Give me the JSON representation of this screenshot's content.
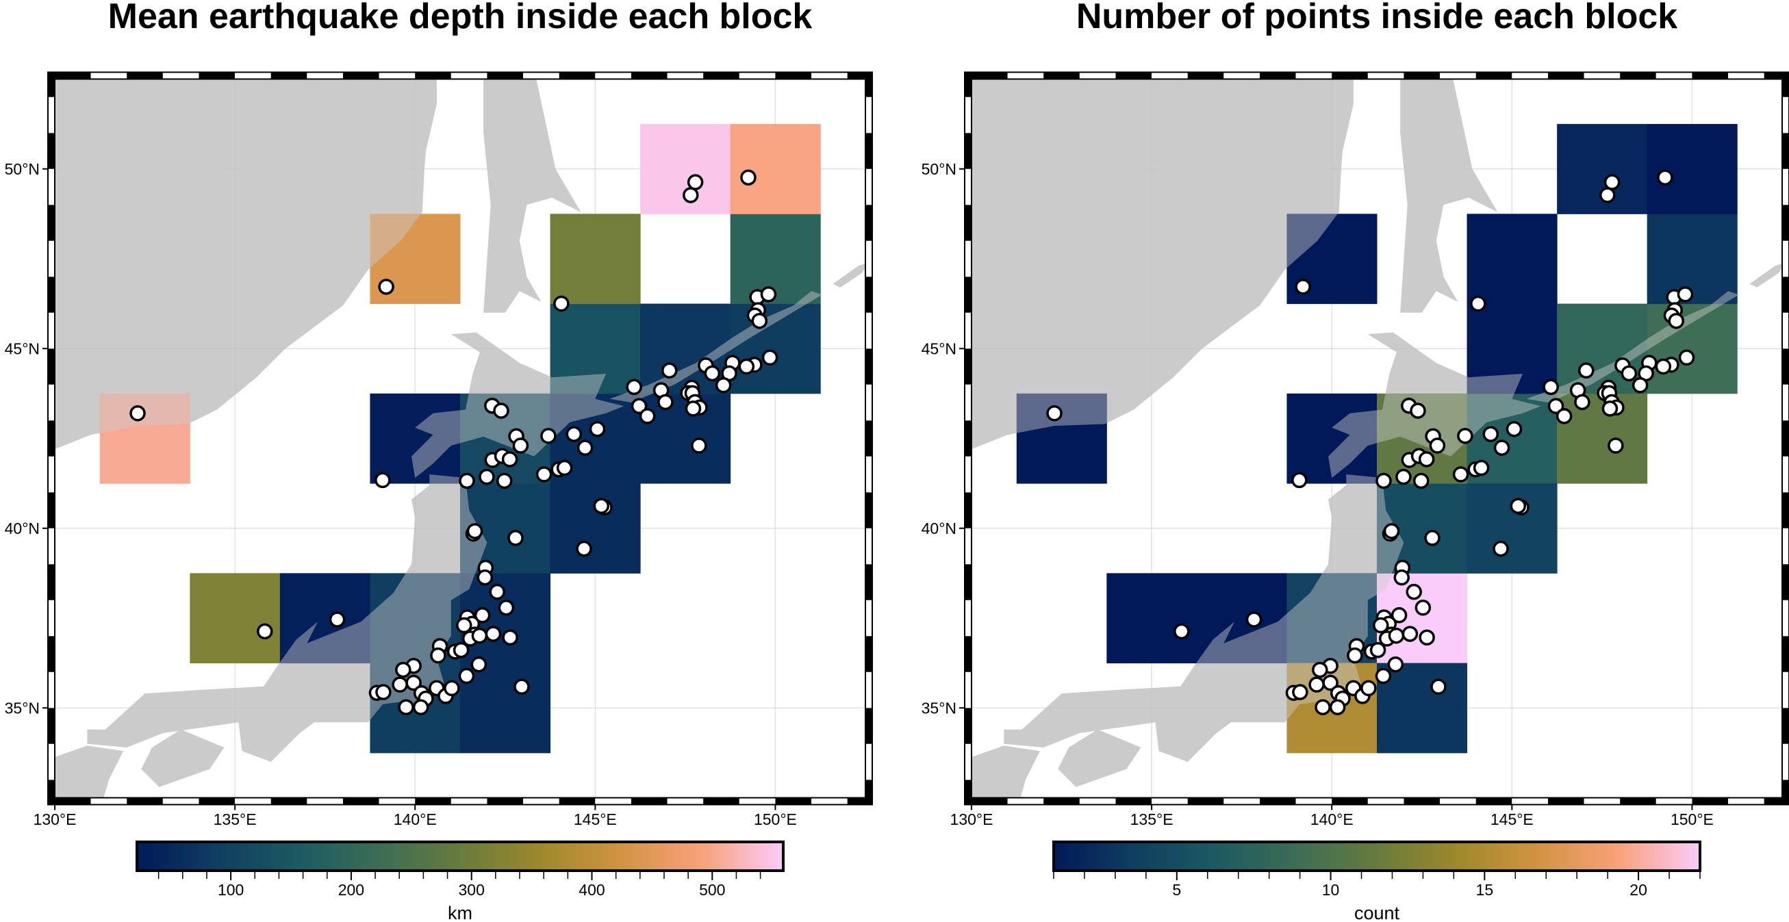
{
  "map": {
    "region": [
      130,
      152.5,
      32.5,
      52.5
    ],
    "block_spacing_deg": 2.5,
    "land_color": "#cbcbcb",
    "land_over_blocks_opacity": 0.45,
    "x_ticks": [
      {
        "value": 130,
        "label": "130°E"
      },
      {
        "value": 135,
        "label": "135°E"
      },
      {
        "value": 140,
        "label": "140°E"
      },
      {
        "value": 145,
        "label": "145°E"
      },
      {
        "value": 150,
        "label": "150°E"
      }
    ],
    "y_ticks": [
      {
        "value": 35,
        "label": "35°N"
      },
      {
        "value": 40,
        "label": "40°N"
      },
      {
        "value": 45,
        "label": "45°N"
      },
      {
        "value": 50,
        "label": "50°N"
      }
    ],
    "point_style": {
      "fill": "#ffffff",
      "stroke": "#000000"
    }
  },
  "colormap": {
    "name": "batlow",
    "stops": [
      "#011959",
      "#103f60",
      "#1c5a62",
      "#3c6d56",
      "#687b3e",
      "#9d892b",
      "#d29343",
      "#f8a17b",
      "#faccfa"
    ]
  },
  "panels": [
    {
      "title": "Mean earthquake depth inside each block",
      "colorbar": {
        "label": "km",
        "range": [
          22,
          559
        ],
        "ticks": [
          {
            "value": 100,
            "label": "100"
          },
          {
            "value": 200,
            "label": "200"
          },
          {
            "value": 300,
            "label": "300"
          },
          {
            "value": 400,
            "label": "400"
          },
          {
            "value": 500,
            "label": "500"
          }
        ],
        "minor_step": 20
      },
      "blocks": [
        {
          "lon": 132.5,
          "lat": 42.5,
          "value": 505
        },
        {
          "lon": 135.0,
          "lat": 37.5,
          "value": 320
        },
        {
          "lon": 137.5,
          "lat": 37.5,
          "value": 35
        },
        {
          "lon": 140.0,
          "lat": 37.5,
          "value": 88
        },
        {
          "lon": 142.5,
          "lat": 37.5,
          "value": 55
        },
        {
          "lon": 140.0,
          "lat": 35.0,
          "value": 88
        },
        {
          "lon": 142.5,
          "lat": 35.0,
          "value": 55
        },
        {
          "lon": 142.5,
          "lat": 40.0,
          "value": 95
        },
        {
          "lon": 145.0,
          "lat": 40.0,
          "value": 55
        },
        {
          "lon": 140.0,
          "lat": 42.5,
          "value": 30
        },
        {
          "lon": 142.5,
          "lat": 42.5,
          "value": 115
        },
        {
          "lon": 145.0,
          "lat": 42.5,
          "value": 55
        },
        {
          "lon": 147.5,
          "lat": 42.5,
          "value": 55
        },
        {
          "lon": 145.0,
          "lat": 45.0,
          "value": 140
        },
        {
          "lon": 147.5,
          "lat": 45.0,
          "value": 75
        },
        {
          "lon": 150.0,
          "lat": 45.0,
          "value": 85
        },
        {
          "lon": 140.0,
          "lat": 47.5,
          "value": 440
        },
        {
          "lon": 145.0,
          "lat": 47.5,
          "value": 305
        },
        {
          "lon": 150.0,
          "lat": 47.5,
          "value": 190
        },
        {
          "lon": 147.5,
          "lat": 50.0,
          "value": 550
        },
        {
          "lon": 150.0,
          "lat": 50.0,
          "value": 495
        }
      ]
    },
    {
      "title": "Number of points inside each block",
      "colorbar": {
        "label": "count",
        "range": [
          1,
          22
        ],
        "ticks": [
          {
            "value": 5,
            "label": "5"
          },
          {
            "value": 10,
            "label": "10"
          },
          {
            "value": 15,
            "label": "15"
          },
          {
            "value": 20,
            "label": "20"
          }
        ],
        "minor_step": 1
      },
      "blocks": [
        {
          "lon": 132.5,
          "lat": 42.5,
          "value": 1
        },
        {
          "lon": 135.0,
          "lat": 37.5,
          "value": 1
        },
        {
          "lon": 137.5,
          "lat": 37.5,
          "value": 1
        },
        {
          "lon": 140.0,
          "lat": 37.5,
          "value": 4
        },
        {
          "lon": 142.5,
          "lat": 37.5,
          "value": 22
        },
        {
          "lon": 140.0,
          "lat": 35.0,
          "value": 15
        },
        {
          "lon": 142.5,
          "lat": 35.0,
          "value": 3
        },
        {
          "lon": 142.5,
          "lat": 40.0,
          "value": 5
        },
        {
          "lon": 145.0,
          "lat": 40.0,
          "value": 4
        },
        {
          "lon": 140.0,
          "lat": 42.5,
          "value": 1
        },
        {
          "lon": 142.5,
          "lat": 42.5,
          "value": 11
        },
        {
          "lon": 145.0,
          "lat": 42.5,
          "value": 7
        },
        {
          "lon": 147.5,
          "lat": 42.5,
          "value": 11
        },
        {
          "lon": 145.0,
          "lat": 45.0,
          "value": 1
        },
        {
          "lon": 147.5,
          "lat": 45.0,
          "value": 8
        },
        {
          "lon": 150.0,
          "lat": 45.0,
          "value": 9
        },
        {
          "lon": 140.0,
          "lat": 47.5,
          "value": 1
        },
        {
          "lon": 145.0,
          "lat": 47.5,
          "value": 1
        },
        {
          "lon": 150.0,
          "lat": 47.5,
          "value": 3
        },
        {
          "lon": 147.5,
          "lat": 50.0,
          "value": 2
        },
        {
          "lon": 150.0,
          "lat": 50.0,
          "value": 1
        }
      ]
    }
  ],
  "points": [
    [
      147.78,
      49.63
    ],
    [
      147.65,
      49.27
    ],
    [
      149.25,
      49.76
    ],
    [
      139.2,
      46.72
    ],
    [
      144.06,
      46.25
    ],
    [
      149.5,
      46.43
    ],
    [
      149.81,
      46.51
    ],
    [
      149.52,
      46.07
    ],
    [
      149.43,
      45.92
    ],
    [
      149.56,
      45.77
    ],
    [
      149.85,
      44.75
    ],
    [
      149.42,
      44.55
    ],
    [
      149.2,
      44.5
    ],
    [
      148.81,
      44.6
    ],
    [
      148.72,
      44.31
    ],
    [
      148.07,
      44.53
    ],
    [
      148.25,
      44.31
    ],
    [
      148.56,
      43.98
    ],
    [
      147.06,
      44.39
    ],
    [
      146.08,
      43.93
    ],
    [
      146.83,
      43.84
    ],
    [
      146.95,
      43.51
    ],
    [
      146.22,
      43.4
    ],
    [
      146.45,
      43.12
    ],
    [
      147.68,
      43.91
    ],
    [
      147.58,
      43.76
    ],
    [
      147.7,
      43.76
    ],
    [
      147.77,
      43.51
    ],
    [
      147.9,
      43.36
    ],
    [
      147.72,
      43.33
    ],
    [
      147.88,
      42.3
    ],
    [
      142.14,
      43.41
    ],
    [
      142.39,
      43.27
    ],
    [
      142.81,
      42.56
    ],
    [
      142.93,
      42.3
    ],
    [
      143.7,
      42.57
    ],
    [
      144.41,
      42.62
    ],
    [
      144.72,
      42.24
    ],
    [
      145.06,
      42.76
    ],
    [
      142.15,
      41.9
    ],
    [
      142.42,
      42.01
    ],
    [
      142.63,
      41.92
    ],
    [
      139.1,
      41.34
    ],
    [
      141.44,
      41.32
    ],
    [
      141.99,
      41.43
    ],
    [
      142.48,
      41.32
    ],
    [
      143.58,
      41.5
    ],
    [
      143.99,
      41.64
    ],
    [
      144.15,
      41.68
    ],
    [
      145.26,
      40.58
    ],
    [
      145.17,
      40.62
    ],
    [
      132.3,
      43.2
    ],
    [
      141.62,
      39.85
    ],
    [
      141.66,
      39.92
    ],
    [
      142.79,
      39.73
    ],
    [
      144.69,
      39.43
    ],
    [
      141.96,
      38.9
    ],
    [
      141.94,
      38.63
    ],
    [
      142.28,
      38.23
    ],
    [
      142.53,
      37.79
    ],
    [
      141.45,
      37.52
    ],
    [
      141.87,
      37.58
    ],
    [
      141.58,
      37.34
    ],
    [
      141.36,
      37.3
    ],
    [
      141.66,
      37.04
    ],
    [
      141.53,
      36.93
    ],
    [
      141.79,
      37.01
    ],
    [
      142.17,
      37.06
    ],
    [
      142.64,
      36.96
    ],
    [
      140.69,
      36.72
    ],
    [
      140.64,
      36.46
    ],
    [
      141.11,
      36.57
    ],
    [
      141.28,
      36.61
    ],
    [
      141.77,
      36.21
    ],
    [
      141.43,
      35.89
    ],
    [
      139.96,
      36.17
    ],
    [
      139.67,
      36.06
    ],
    [
      139.58,
      35.65
    ],
    [
      139.96,
      35.7
    ],
    [
      138.94,
      35.42
    ],
    [
      139.12,
      35.44
    ],
    [
      140.18,
      35.41
    ],
    [
      140.3,
      35.26
    ],
    [
      140.6,
      35.55
    ],
    [
      140.85,
      35.33
    ],
    [
      141.02,
      35.55
    ],
    [
      139.75,
      35.02
    ],
    [
      140.16,
      35.02
    ],
    [
      142.96,
      35.59
    ],
    [
      135.83,
      37.13
    ],
    [
      137.84,
      37.46
    ]
  ]
}
